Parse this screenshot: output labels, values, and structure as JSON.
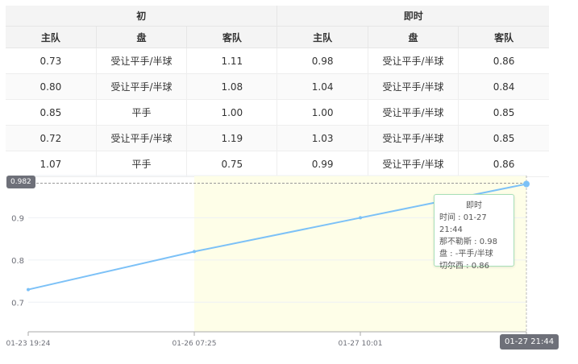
{
  "table": {
    "groups": [
      "初",
      "即时"
    ],
    "columns": [
      "主队",
      "盘",
      "客队",
      "主队",
      "盘",
      "客队"
    ],
    "rows": [
      [
        "0.73",
        "受让平手/半球",
        "1.11",
        "0.98",
        "受让平手/半球",
        "0.86"
      ],
      [
        "0.80",
        "受让平手/半球",
        "1.08",
        "1.04",
        "受让平手/半球",
        "0.84"
      ],
      [
        "0.85",
        "平手",
        "1.00",
        "1.00",
        "受让平手/半球",
        "0.85"
      ],
      [
        "0.72",
        "受让平手/半球",
        "1.19",
        "1.03",
        "受让平手/半球",
        "0.85"
      ],
      [
        "1.07",
        "平手",
        "0.75",
        "0.99",
        "受让平手/半球",
        "0.86"
      ]
    ]
  },
  "chart_data": {
    "type": "line",
    "x": [
      "01-23 19:24",
      "01-26 07:25",
      "01-27 10:01",
      "01-27 21:44"
    ],
    "values": [
      0.73,
      0.82,
      0.9,
      0.98
    ],
    "yticks": [
      "0.7",
      "0.8",
      "0.9"
    ],
    "ylim": [
      0.63,
      1.0
    ],
    "grid": true,
    "line_color": "#7cc1f7",
    "highlight_band_color": "#fefee8",
    "axis_pointer": {
      "y_label": "0.982",
      "x_label": "01-27 21:44"
    },
    "tooltip": {
      "title": "即时",
      "lines": [
        "时间 : 01-27 21:44",
        "那不勒斯 : 0.98",
        "盘 : -平手/半球",
        "切尔西 : 0.86"
      ]
    }
  }
}
